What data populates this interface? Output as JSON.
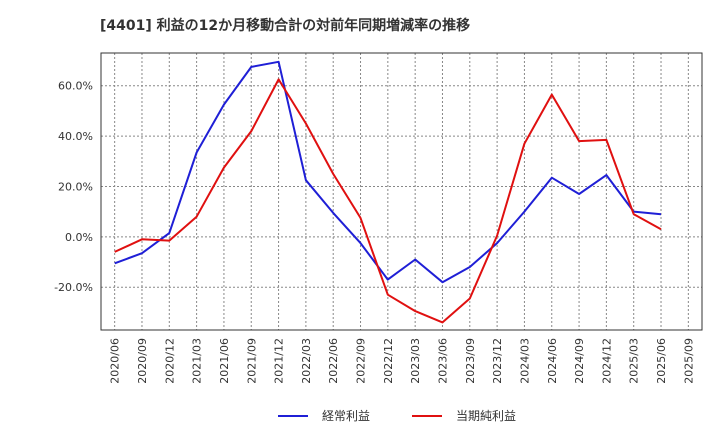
{
  "chart_data": {
    "type": "line",
    "title": "[4401]  利益の12か月移動合計の対前年同期増減率の推移",
    "categories": [
      "2020/06",
      "2020/09",
      "2020/12",
      "2021/03",
      "2021/06",
      "2021/09",
      "2021/12",
      "2022/03",
      "2022/06",
      "2022/09",
      "2022/12",
      "2023/03",
      "2023/06",
      "2023/09",
      "2023/12",
      "2024/03",
      "2024/06",
      "2024/09",
      "2024/12",
      "2025/03",
      "2025/06",
      "2025/09"
    ],
    "ylim": [
      -37,
      73
    ],
    "yticks": [
      -20,
      0,
      20,
      40,
      60
    ],
    "ytick_labels": [
      "-20.0%",
      "0.0%",
      "20.0%",
      "40.0%",
      "60.0%"
    ],
    "series": [
      {
        "name": "経常利益",
        "color": "#1f1fd6",
        "values": [
          -10.5,
          -6.5,
          1.5,
          33.5,
          52.5,
          67.5,
          69.5,
          22.5,
          9.5,
          -2.5,
          -17,
          -9,
          -18,
          -12,
          -2.5,
          10,
          23.5,
          17,
          24.5,
          10,
          9,
          null
        ]
      },
      {
        "name": "当期純利益",
        "color": "#e01010",
        "values": [
          -6,
          -1,
          -1.5,
          8,
          27.5,
          42,
          62.5,
          45,
          25,
          7.5,
          -23,
          -29.5,
          -34,
          -24.5,
          0.5,
          37,
          56.5,
          38,
          38.5,
          9,
          3,
          null
        ]
      }
    ],
    "legend": {
      "position": "bottom"
    },
    "grid": true
  }
}
